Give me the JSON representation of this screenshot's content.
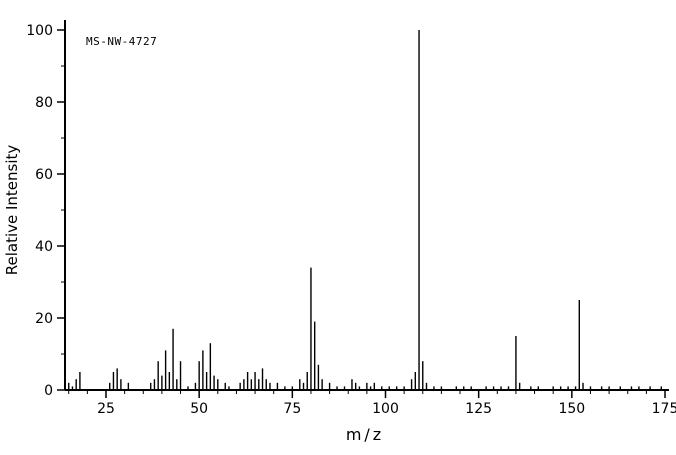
{
  "chart_data": {
    "type": "bar",
    "subtype": "mass-spectrum",
    "title": "MS-NW-4727",
    "xlabel": "m/z",
    "ylabel": "Relative Intensity",
    "xlim": [
      14,
      175
    ],
    "ylim": [
      0,
      100
    ],
    "x_major_ticks": [
      25,
      50,
      75,
      100,
      125,
      150,
      175
    ],
    "x_minor_step": 5,
    "y_major_ticks": [
      0,
      20,
      40,
      60,
      80,
      100
    ],
    "y_minor_step": 10,
    "grid": false,
    "legend": false,
    "line_color": "#000000",
    "background": "#ffffff",
    "base_peak_mz": 109,
    "peaks": [
      [
        15,
        2
      ],
      [
        16,
        1
      ],
      [
        17,
        3
      ],
      [
        18,
        5
      ],
      [
        26,
        2
      ],
      [
        27,
        5
      ],
      [
        28,
        6
      ],
      [
        29,
        3
      ],
      [
        31,
        2
      ],
      [
        37,
        2
      ],
      [
        38,
        3
      ],
      [
        39,
        8
      ],
      [
        40,
        4
      ],
      [
        41,
        11
      ],
      [
        42,
        5
      ],
      [
        43,
        17
      ],
      [
        44,
        3
      ],
      [
        45,
        8
      ],
      [
        47,
        1
      ],
      [
        49,
        2
      ],
      [
        50,
        8
      ],
      [
        51,
        11
      ],
      [
        52,
        5
      ],
      [
        53,
        13
      ],
      [
        54,
        4
      ],
      [
        55,
        3
      ],
      [
        57,
        2
      ],
      [
        58,
        1
      ],
      [
        61,
        2
      ],
      [
        62,
        3
      ],
      [
        63,
        5
      ],
      [
        64,
        3
      ],
      [
        65,
        5
      ],
      [
        66,
        3
      ],
      [
        67,
        6
      ],
      [
        68,
        3
      ],
      [
        69,
        2
      ],
      [
        71,
        2
      ],
      [
        73,
        1
      ],
      [
        75,
        1
      ],
      [
        77,
        3
      ],
      [
        78,
        2
      ],
      [
        79,
        5
      ],
      [
        80,
        34
      ],
      [
        81,
        19
      ],
      [
        82,
        7
      ],
      [
        83,
        3
      ],
      [
        85,
        2
      ],
      [
        87,
        1
      ],
      [
        89,
        1
      ],
      [
        91,
        3
      ],
      [
        92,
        2
      ],
      [
        93,
        1
      ],
      [
        95,
        2
      ],
      [
        96,
        1
      ],
      [
        97,
        2
      ],
      [
        99,
        1
      ],
      [
        101,
        1
      ],
      [
        103,
        1
      ],
      [
        105,
        1
      ],
      [
        107,
        3
      ],
      [
        108,
        5
      ],
      [
        109,
        100
      ],
      [
        110,
        8
      ],
      [
        111,
        2
      ],
      [
        113,
        1
      ],
      [
        115,
        1
      ],
      [
        119,
        1
      ],
      [
        121,
        1
      ],
      [
        123,
        1
      ],
      [
        127,
        1
      ],
      [
        129,
        1
      ],
      [
        131,
        1
      ],
      [
        133,
        1
      ],
      [
        135,
        15
      ],
      [
        136,
        2
      ],
      [
        139,
        1
      ],
      [
        141,
        1
      ],
      [
        145,
        1
      ],
      [
        147,
        1
      ],
      [
        149,
        1
      ],
      [
        151,
        1
      ],
      [
        152,
        25
      ],
      [
        153,
        2
      ],
      [
        155,
        1
      ],
      [
        158,
        1
      ],
      [
        160,
        1
      ],
      [
        163,
        1
      ],
      [
        166,
        1
      ],
      [
        168,
        1
      ],
      [
        171,
        1
      ],
      [
        174,
        1
      ]
    ]
  }
}
